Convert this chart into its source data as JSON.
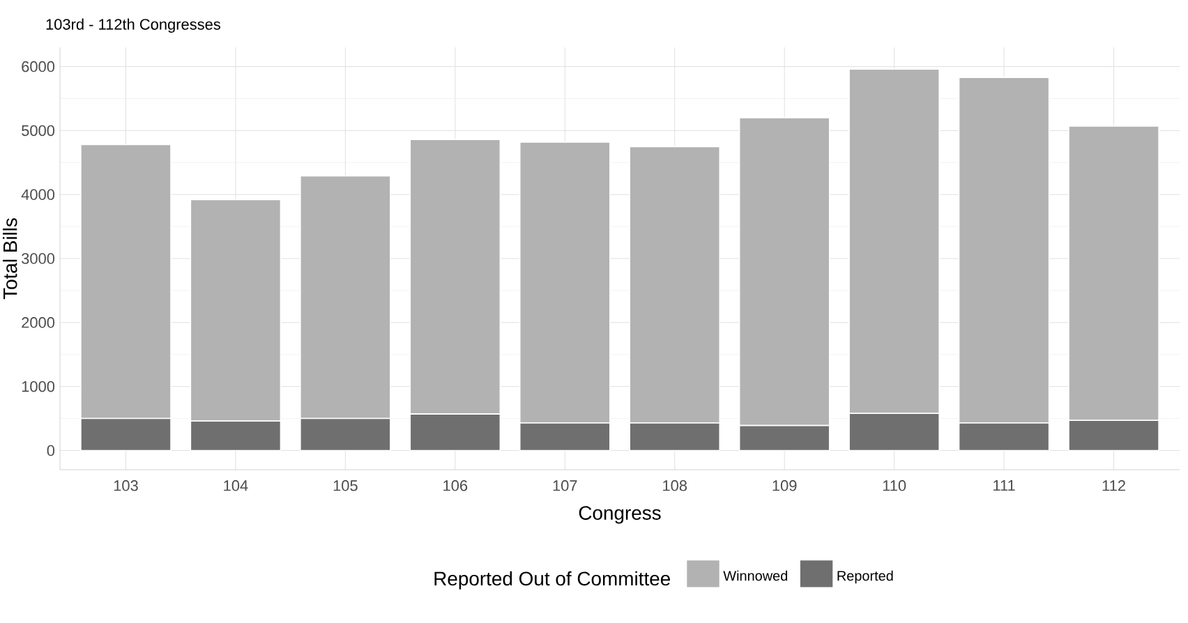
{
  "chart_data": {
    "type": "bar",
    "title": "103rd - 112th Congresses",
    "xlabel": "Congress",
    "ylabel": "Total Bills",
    "legend_title": "Reported Out of Committee",
    "categories": [
      "103",
      "104",
      "105",
      "106",
      "107",
      "108",
      "109",
      "110",
      "111",
      "112"
    ],
    "stacked": true,
    "series": [
      {
        "name": "Reported",
        "color": "#6f6f6f",
        "values": [
          500,
          460,
          500,
          570,
          430,
          430,
          390,
          580,
          430,
          470
        ]
      },
      {
        "name": "Winnowed",
        "color": "#b2b2b2",
        "values": [
          4280,
          3460,
          3790,
          4290,
          4390,
          4320,
          4810,
          5380,
          5400,
          4600
        ]
      }
    ],
    "ylim": [
      -300,
      6300
    ],
    "yticks": [
      0,
      1000,
      2000,
      3000,
      4000,
      5000,
      6000
    ],
    "grid": true,
    "legend": "bottom"
  }
}
